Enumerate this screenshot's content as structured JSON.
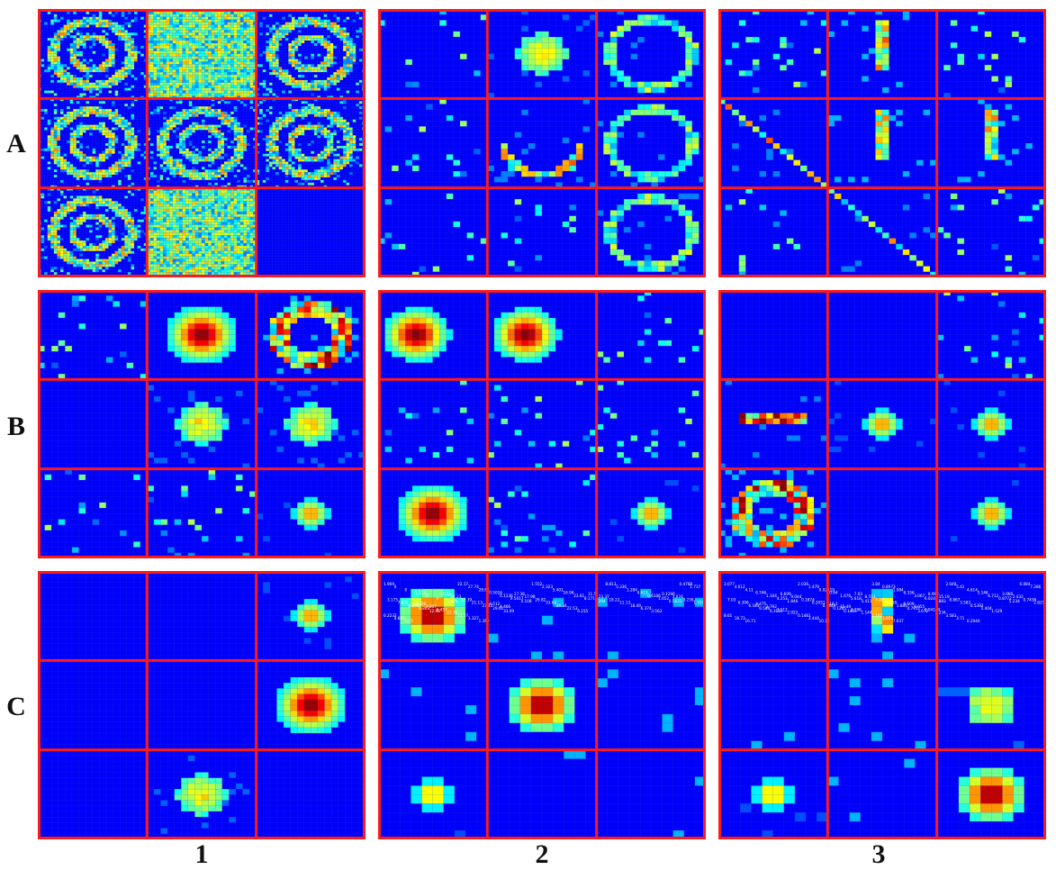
{
  "figure": {
    "row_labels": [
      "A",
      "B",
      "C"
    ],
    "col_labels": [
      "1",
      "2",
      "3"
    ],
    "colors": {
      "background": "#0a1f8c",
      "grid_border": "#ff1a1a",
      "colormap": "jet"
    },
    "panels": [
      {
        "row": "A",
        "col": "1",
        "cells": [
          "diffuse",
          "dense",
          "diffuse",
          "diffuse",
          "diffuse",
          "diffuse",
          "diffuse",
          "dense",
          "empty"
        ]
      },
      {
        "row": "A",
        "col": "2",
        "cells": [
          "sparse",
          "blob",
          "ring",
          "sparse",
          "arc",
          "ring",
          "sparse",
          "sparse",
          "ring"
        ]
      },
      {
        "row": "A",
        "col": "3",
        "cells": [
          "sparse",
          "bar",
          "sparse",
          "diag",
          "bar",
          "bar",
          "sparse",
          "diag",
          "sparse"
        ]
      },
      {
        "row": "B",
        "col": "1",
        "cells": [
          "sparse",
          "hot",
          "hot-ring",
          "empty",
          "blob",
          "blob",
          "sparse",
          "sparse",
          "small"
        ]
      },
      {
        "row": "B",
        "col": "2",
        "cells": [
          "half-hot",
          "half-hot",
          "sparse",
          "sparse",
          "sparse",
          "sparse",
          "hot",
          "sparse",
          "small"
        ]
      },
      {
        "row": "B",
        "col": "3",
        "cells": [
          "empty",
          "empty",
          "sparse",
          "bar-hot",
          "small",
          "small",
          "hot-ring",
          "empty",
          "small"
        ]
      },
      {
        "row": "C",
        "col": "1",
        "cells": [
          "empty",
          "empty",
          "small",
          "empty",
          "empty",
          "hot",
          "empty",
          "blob",
          "empty"
        ]
      },
      {
        "row": "C",
        "col": "2",
        "cells": [
          "numeric-hot",
          "numeric",
          "numeric",
          "numeric",
          "numeric-hot",
          "numeric",
          "numeric-small",
          "numeric",
          "numeric"
        ]
      },
      {
        "row": "C",
        "col": "3",
        "cells": [
          "numeric",
          "numeric-bar",
          "numeric",
          "numeric",
          "numeric",
          "numeric-blob",
          "numeric-small",
          "numeric",
          "numeric-hot"
        ]
      }
    ],
    "panel_C2_sample_values": [
      "1.909",
      "0",
      "0",
      "1.113",
      "0",
      "0",
      "1.425",
      "22.17",
      "27.74",
      "28.68",
      "0.5016",
      "0.1136",
      "0.5017",
      "4.108",
      "1.552",
      "2.323",
      "5.401",
      "16.96",
      "23.61",
      "8.171",
      "5.364",
      "8.813",
      "5.336",
      "1.284",
      "4.613",
      "0.6106",
      "1.652",
      "0.5631",
      "0.4788",
      "1.737",
      "3.175",
      "7.631",
      "6.546",
      "6.803",
      "12.96",
      "17.23",
      "24.23",
      "13.39",
      "21.13",
      "27.12",
      "29.61",
      "33.09",
      "17.38",
      "17.98",
      "26.82",
      "33.69",
      "36.34",
      "22.53",
      "6.155",
      "11.5",
      "23.37",
      "18.22",
      "11.13",
      "18.49",
      "6.374",
      "3.563",
      "0.1296",
      "3.024",
      "3.236",
      "1.707",
      "0.2232",
      "4.663",
      "14.5",
      "3.038",
      "2.807",
      "6.457",
      "22.76",
      "21.57",
      "3.327",
      "1.369",
      "4.512",
      "4.466"
    ],
    "panel_C3_sample_values": [
      "3.077",
      "4.012",
      "4.11",
      "6.746",
      "1.104",
      "4.253",
      "1.846",
      "2.036",
      "1.479",
      "0.02419",
      "0.64",
      "1.476",
      "5.618",
      "5.411",
      "3.84",
      "0.8973",
      "1.984",
      "6.336",
      "3.067",
      "6.024",
      "4.883",
      "2.048",
      "5.41",
      "4.614",
      "5.146",
      "6.712",
      "0.8772",
      "5.234",
      "6.084",
      "7.286",
      "7.03",
      "6.306",
      "6.183",
      "6.586",
      "0.3183",
      "6.609",
      "9.044",
      "0.1874",
      "0.2051",
      "0.1449",
      "0.1265",
      "0.1465",
      "7.03",
      "8.551",
      "7.48",
      "5.658",
      "1.683",
      "0.7917",
      "3.672",
      "8.992",
      "15.19",
      "8.867",
      "3.583",
      "0.5392",
      "1.404",
      "1.529",
      "3.968",
      "2.432",
      "0.7436",
      "2.825",
      "8.61",
      "18.73",
      "16.71",
      "4.475",
      "2.792",
      "3.112",
      "2.022",
      "0.1461",
      "3.444",
      "10.18",
      "16.1",
      "15.49",
      "3.196",
      "1.144",
      "1.182",
      "3.058",
      "7.637",
      "6.609",
      "8.055",
      "0.04164",
      "1.234",
      "3.583",
      "3.71",
      "0.2944"
    ]
  }
}
